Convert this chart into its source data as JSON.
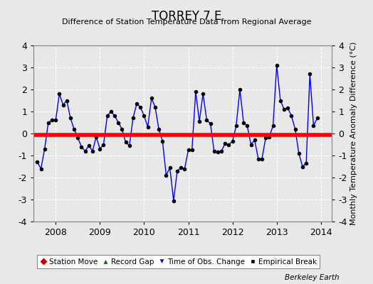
{
  "title": "TORREY 7 E",
  "subtitle": "Difference of Station Temperature Data from Regional Average",
  "ylabel_right": "Monthly Temperature Anomaly Difference (°C)",
  "footer": "Berkeley Earth",
  "ylim": [
    -4,
    4
  ],
  "xlim": [
    2007.5,
    2014.25
  ],
  "yticks": [
    -4,
    -3,
    -2,
    -1,
    0,
    1,
    2,
    3,
    4
  ],
  "xticks": [
    2008,
    2009,
    2010,
    2011,
    2012,
    2013,
    2014
  ],
  "bias_value": -0.05,
  "background_color": "#e8e8e8",
  "plot_bg_color": "#e8e8e8",
  "grid_color": "#ffffff",
  "line_color": "#0000ff",
  "bias_color": "#ff0000",
  "marker_color": "#000000",
  "times": [
    2007.583,
    2007.667,
    2007.75,
    2007.833,
    2007.917,
    2008.0,
    2008.083,
    2008.167,
    2008.25,
    2008.333,
    2008.417,
    2008.5,
    2008.583,
    2008.667,
    2008.75,
    2008.833,
    2008.917,
    2009.0,
    2009.083,
    2009.167,
    2009.25,
    2009.333,
    2009.417,
    2009.5,
    2009.583,
    2009.667,
    2009.75,
    2009.833,
    2009.917,
    2010.0,
    2010.083,
    2010.167,
    2010.25,
    2010.333,
    2010.417,
    2010.5,
    2010.583,
    2010.667,
    2010.75,
    2010.833,
    2010.917,
    2011.0,
    2011.083,
    2011.167,
    2011.25,
    2011.333,
    2011.417,
    2011.5,
    2011.583,
    2011.667,
    2011.75,
    2011.833,
    2011.917,
    2012.0,
    2012.083,
    2012.167,
    2012.25,
    2012.333,
    2012.417,
    2012.5,
    2012.583,
    2012.667,
    2012.75,
    2012.833,
    2012.917,
    2013.0,
    2013.083,
    2013.167,
    2013.25,
    2013.333,
    2013.417,
    2013.5,
    2013.583,
    2013.667,
    2013.75,
    2013.833,
    2013.917
  ],
  "values": [
    -1.3,
    -1.6,
    -0.7,
    0.5,
    0.6,
    0.6,
    1.8,
    1.3,
    1.5,
    0.7,
    0.2,
    -0.2,
    -0.6,
    -0.8,
    -0.55,
    -0.8,
    -0.15,
    -0.7,
    -0.5,
    0.8,
    1.0,
    0.8,
    0.5,
    0.2,
    -0.4,
    -0.55,
    0.7,
    1.35,
    1.2,
    0.8,
    0.3,
    1.6,
    1.2,
    0.2,
    -0.35,
    -1.9,
    -1.55,
    -3.05,
    -1.7,
    -1.55,
    -1.6,
    -0.75,
    -0.75,
    1.9,
    0.55,
    1.8,
    0.6,
    0.45,
    -0.8,
    -0.85,
    -0.8,
    -0.45,
    -0.5,
    -0.35,
    0.35,
    2.0,
    0.5,
    0.35,
    -0.5,
    -0.3,
    -1.15,
    -1.15,
    -0.2,
    -0.15,
    0.35,
    3.1,
    1.5,
    1.1,
    1.15,
    0.8,
    0.2,
    -0.9,
    -1.5,
    -1.35,
    2.7,
    0.35,
    0.7
  ]
}
